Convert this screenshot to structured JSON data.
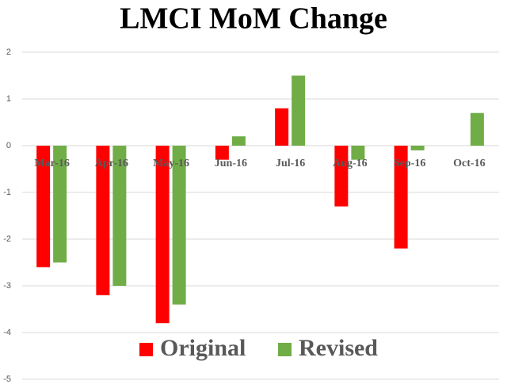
{
  "chart_data": {
    "type": "bar",
    "title": "LMCI MoM Change",
    "categories": [
      "Mar-16",
      "Apr-16",
      "May-16",
      "Jun-16",
      "Jul-16",
      "Aug-16",
      "Sep-16",
      "Oct-16"
    ],
    "series": [
      {
        "name": "Original",
        "color": "#ff0000",
        "values": [
          -2.6,
          -3.2,
          -3.8,
          -0.3,
          0.8,
          -1.3,
          -2.2,
          null
        ]
      },
      {
        "name": "Revised",
        "color": "#70ad47",
        "values": [
          -2.5,
          -3.0,
          -3.4,
          0.2,
          1.5,
          -0.3,
          -0.1,
          0.7
        ]
      }
    ],
    "ylim": [
      -5,
      2
    ],
    "yticks": [
      -5,
      -4,
      -3,
      -2,
      -1,
      0,
      1,
      2
    ],
    "grid": true
  }
}
